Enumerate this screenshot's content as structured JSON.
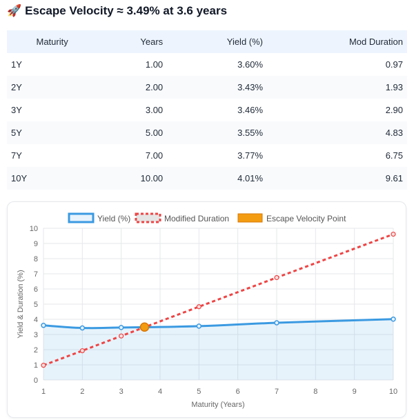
{
  "title": {
    "icon": "rocket-icon",
    "text": "Escape Velocity ≈ 3.49% at 3.6 years"
  },
  "table": {
    "headers": [
      "Maturity",
      "Years",
      "Yield (%)",
      "Mod Duration"
    ],
    "rows": [
      [
        "1Y",
        "1.00",
        "3.60%",
        "0.97"
      ],
      [
        "2Y",
        "2.00",
        "3.43%",
        "1.93"
      ],
      [
        "3Y",
        "3.00",
        "3.46%",
        "2.90"
      ],
      [
        "5Y",
        "5.00",
        "3.55%",
        "4.83"
      ],
      [
        "7Y",
        "7.00",
        "3.77%",
        "6.75"
      ],
      [
        "10Y",
        "10.00",
        "4.01%",
        "9.61"
      ]
    ]
  },
  "chart_data": {
    "type": "line",
    "xlabel": "Maturity (Years)",
    "ylabel": "Yield & Duration (%)",
    "xlim": [
      1,
      10
    ],
    "ylim": [
      0,
      10
    ],
    "xticks": [
      "1",
      "2",
      "3",
      "4",
      "5",
      "6",
      "7",
      "8",
      "9",
      "10"
    ],
    "yticks": [
      "0",
      "1",
      "2",
      "3",
      "4",
      "5",
      "6",
      "7",
      "8",
      "9",
      "10"
    ],
    "legend_position": "top",
    "series": [
      {
        "name": "Yield (%)",
        "color": "#3b9ae1",
        "x": [
          1,
          2,
          3,
          5,
          7,
          10
        ],
        "y": [
          3.6,
          3.43,
          3.46,
          3.55,
          3.77,
          4.01
        ]
      },
      {
        "name": "Modified Duration",
        "color": "#ef4444",
        "x": [
          1,
          2,
          3,
          5,
          7,
          10
        ],
        "y": [
          0.97,
          1.93,
          2.9,
          4.83,
          6.75,
          9.61
        ]
      },
      {
        "name": "Escape Velocity Point",
        "color": "#f39c12",
        "x": [
          3.6
        ],
        "y": [
          3.49
        ]
      }
    ]
  }
}
